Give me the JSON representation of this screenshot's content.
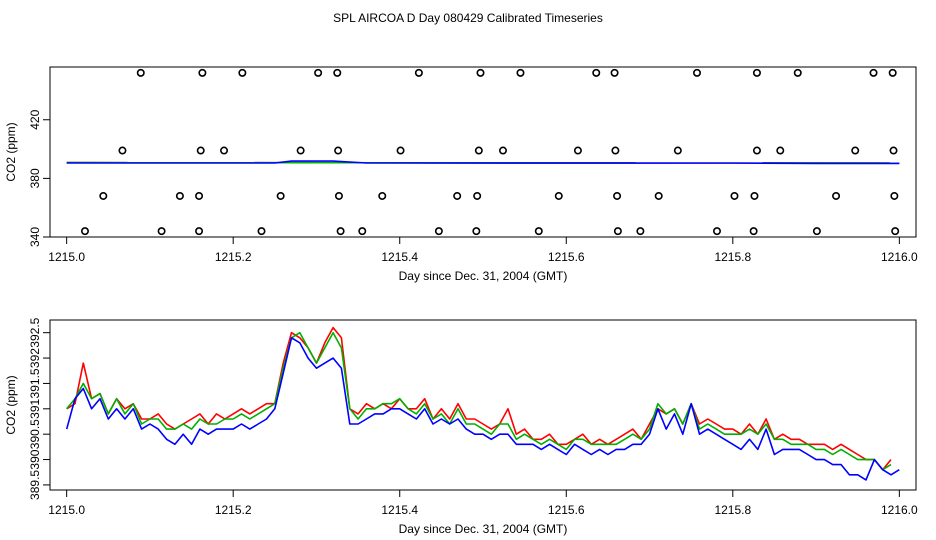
{
  "figure": {
    "title": "SPL AIRCOA D  Day 080429  Calibrated Timeseries"
  },
  "colors": {
    "red": "#ff0000",
    "green": "#00b000",
    "blue": "#0000ff",
    "points": "#000000"
  },
  "chart_data": [
    {
      "type": "scatter",
      "title": "",
      "xlabel": "Day since Dec. 31, 2004 (GMT)",
      "ylabel": "CO2 (ppm)",
      "xlim": [
        1214.98,
        1216.02
      ],
      "ylim": [
        340,
        456
      ],
      "xticks": [
        1215.0,
        1215.2,
        1215.4,
        1215.6,
        1215.8,
        1216.0
      ],
      "xtick_labels": [
        "1215.0",
        "1215.2",
        "1215.4",
        "1215.6",
        "1215.8",
        "1216.0"
      ],
      "yticks": [
        340,
        380,
        420
      ],
      "ytick_labels": [
        "340",
        "380",
        "420"
      ],
      "calibration_points": [
        {
          "x": 1215.089,
          "y": 452
        },
        {
          "x": 1215.163,
          "y": 452
        },
        {
          "x": 1215.211,
          "y": 452
        },
        {
          "x": 1215.302,
          "y": 452
        },
        {
          "x": 1215.325,
          "y": 452
        },
        {
          "x": 1215.423,
          "y": 452
        },
        {
          "x": 1215.497,
          "y": 452
        },
        {
          "x": 1215.545,
          "y": 452
        },
        {
          "x": 1215.636,
          "y": 452
        },
        {
          "x": 1215.658,
          "y": 452
        },
        {
          "x": 1215.757,
          "y": 452
        },
        {
          "x": 1215.829,
          "y": 452
        },
        {
          "x": 1215.878,
          "y": 452
        },
        {
          "x": 1215.969,
          "y": 452
        },
        {
          "x": 1215.992,
          "y": 452
        },
        {
          "x": 1215.067,
          "y": 399
        },
        {
          "x": 1215.161,
          "y": 399
        },
        {
          "x": 1215.189,
          "y": 399
        },
        {
          "x": 1215.281,
          "y": 399
        },
        {
          "x": 1215.326,
          "y": 399
        },
        {
          "x": 1215.401,
          "y": 399
        },
        {
          "x": 1215.495,
          "y": 399
        },
        {
          "x": 1215.524,
          "y": 399
        },
        {
          "x": 1215.614,
          "y": 399
        },
        {
          "x": 1215.659,
          "y": 399
        },
        {
          "x": 1215.734,
          "y": 399
        },
        {
          "x": 1215.829,
          "y": 399
        },
        {
          "x": 1215.857,
          "y": 399
        },
        {
          "x": 1215.947,
          "y": 399
        },
        {
          "x": 1215.993,
          "y": 399
        },
        {
          "x": 1215.044,
          "y": 368
        },
        {
          "x": 1215.136,
          "y": 368
        },
        {
          "x": 1215.159,
          "y": 368
        },
        {
          "x": 1215.257,
          "y": 368
        },
        {
          "x": 1215.327,
          "y": 368
        },
        {
          "x": 1215.379,
          "y": 368
        },
        {
          "x": 1215.469,
          "y": 368
        },
        {
          "x": 1215.493,
          "y": 368
        },
        {
          "x": 1215.591,
          "y": 368
        },
        {
          "x": 1215.661,
          "y": 368
        },
        {
          "x": 1215.711,
          "y": 368
        },
        {
          "x": 1215.802,
          "y": 368
        },
        {
          "x": 1215.826,
          "y": 368
        },
        {
          "x": 1215.924,
          "y": 368
        },
        {
          "x": 1215.994,
          "y": 368
        },
        {
          "x": 1215.022,
          "y": 344
        },
        {
          "x": 1215.114,
          "y": 344
        },
        {
          "x": 1215.159,
          "y": 344
        },
        {
          "x": 1215.234,
          "y": 344
        },
        {
          "x": 1215.329,
          "y": 344
        },
        {
          "x": 1215.355,
          "y": 344
        },
        {
          "x": 1215.447,
          "y": 344
        },
        {
          "x": 1215.492,
          "y": 344
        },
        {
          "x": 1215.567,
          "y": 344
        },
        {
          "x": 1215.662,
          "y": 344
        },
        {
          "x": 1215.689,
          "y": 344
        },
        {
          "x": 1215.781,
          "y": 344
        },
        {
          "x": 1215.825,
          "y": 344
        },
        {
          "x": 1215.901,
          "y": 344
        },
        {
          "x": 1215.995,
          "y": 344
        }
      ],
      "series": [
        {
          "name": "red",
          "x": [
            1215.0,
            1216.0
          ],
          "values": [
            390.8,
            390.5
          ]
        },
        {
          "name": "green",
          "x": [
            1215.0,
            1216.0
          ],
          "values": [
            390.8,
            390.5
          ]
        },
        {
          "name": "blue",
          "x": [
            1215.0,
            1215.25,
            1215.27,
            1215.32,
            1215.36,
            1215.6,
            1215.8,
            1215.9,
            1216.0
          ],
          "values": [
            390.5,
            390.5,
            391.8,
            391.8,
            390.5,
            390.4,
            390.5,
            390.2,
            390.2
          ]
        }
      ]
    },
    {
      "type": "line",
      "title": "",
      "xlabel": "Day since Dec. 31, 2004 (GMT)",
      "ylabel": "CO2 (ppm)",
      "xlim": [
        1214.98,
        1216.02
      ],
      "ylim": [
        389.4,
        392.75
      ],
      "xticks": [
        1215.0,
        1215.2,
        1215.4,
        1215.6,
        1215.8,
        1216.0
      ],
      "xtick_labels": [
        "1215.0",
        "1215.2",
        "1215.4",
        "1215.6",
        "1215.8",
        "1216.0"
      ],
      "yticks": [
        389.5,
        390.0,
        390.5,
        391.0,
        391.5,
        392.0,
        392.5
      ],
      "ytick_labels": [
        "389.5",
        "390",
        "390.5",
        "391",
        "391.5",
        "392",
        "392.5"
      ],
      "x": [
        1215.0,
        1215.01,
        1215.02,
        1215.03,
        1215.04,
        1215.05,
        1215.06,
        1215.07,
        1215.08,
        1215.09,
        1215.1,
        1215.11,
        1215.12,
        1215.13,
        1215.14,
        1215.15,
        1215.16,
        1215.17,
        1215.18,
        1215.19,
        1215.2,
        1215.21,
        1215.22,
        1215.23,
        1215.24,
        1215.25,
        1215.26,
        1215.27,
        1215.28,
        1215.29,
        1215.3,
        1215.31,
        1215.32,
        1215.33,
        1215.34,
        1215.35,
        1215.36,
        1215.37,
        1215.38,
        1215.39,
        1215.4,
        1215.41,
        1215.42,
        1215.43,
        1215.44,
        1215.45,
        1215.46,
        1215.47,
        1215.48,
        1215.49,
        1215.5,
        1215.51,
        1215.52,
        1215.53,
        1215.54,
        1215.55,
        1215.56,
        1215.57,
        1215.58,
        1215.59,
        1215.6,
        1215.61,
        1215.62,
        1215.63,
        1215.64,
        1215.65,
        1215.66,
        1215.67,
        1215.68,
        1215.69,
        1215.7,
        1215.71,
        1215.72,
        1215.73,
        1215.74,
        1215.75,
        1215.76,
        1215.77,
        1215.78,
        1215.79,
        1215.8,
        1215.81,
        1215.82,
        1215.83,
        1215.84,
        1215.85,
        1215.86,
        1215.87,
        1215.88,
        1215.89,
        1215.9,
        1215.91,
        1215.92,
        1215.93,
        1215.94,
        1215.95,
        1215.96,
        1215.97,
        1215.98,
        1215.99,
        1216.0
      ],
      "series": [
        {
          "name": "red",
          "values": [
            391.0,
            391.1,
            391.9,
            391.2,
            391.3,
            390.9,
            391.2,
            391.0,
            391.1,
            390.8,
            390.8,
            390.9,
            390.7,
            390.6,
            390.7,
            390.8,
            390.9,
            390.7,
            390.9,
            390.8,
            390.9,
            391.0,
            390.9,
            391.0,
            391.1,
            391.1,
            391.9,
            392.5,
            392.4,
            392.2,
            391.9,
            392.3,
            392.6,
            392.4,
            391.0,
            390.9,
            391.1,
            391.0,
            391.1,
            391.0,
            391.2,
            391.0,
            391.0,
            391.2,
            390.8,
            391.0,
            390.8,
            391.1,
            390.8,
            390.8,
            390.7,
            390.6,
            390.7,
            391.0,
            390.5,
            390.6,
            390.4,
            390.4,
            390.5,
            390.3,
            390.3,
            390.4,
            390.5,
            390.3,
            390.4,
            390.3,
            390.4,
            390.5,
            390.6,
            390.4,
            390.7,
            391.0,
            390.9,
            391.0,
            390.7,
            391.1,
            390.7,
            390.8,
            390.7,
            390.6,
            390.6,
            390.5,
            390.7,
            390.5,
            390.8,
            390.4,
            390.5,
            390.4,
            390.4,
            390.3,
            390.3,
            390.3,
            390.2,
            390.3,
            390.2,
            390.1,
            390.0,
            390.0,
            389.8,
            390.0,
            null
          ]
        },
        {
          "name": "green",
          "values": [
            391.0,
            391.2,
            391.5,
            391.2,
            391.3,
            390.9,
            391.2,
            390.9,
            391.1,
            390.7,
            390.8,
            390.8,
            390.6,
            390.6,
            390.7,
            390.6,
            390.8,
            390.7,
            390.7,
            390.8,
            390.8,
            390.9,
            390.8,
            390.9,
            391.0,
            391.1,
            391.8,
            392.4,
            392.5,
            392.2,
            391.9,
            392.2,
            392.5,
            392.2,
            391.0,
            390.8,
            391.0,
            391.0,
            391.1,
            391.1,
            391.2,
            391.0,
            390.9,
            391.1,
            390.8,
            390.9,
            390.7,
            391.0,
            390.7,
            390.7,
            390.6,
            390.5,
            390.7,
            390.7,
            390.4,
            390.5,
            390.4,
            390.3,
            390.4,
            390.3,
            390.2,
            390.4,
            390.4,
            390.3,
            390.3,
            390.3,
            390.3,
            390.4,
            390.5,
            390.4,
            390.6,
            391.1,
            390.9,
            391.0,
            390.7,
            391.1,
            390.6,
            390.7,
            390.6,
            390.5,
            390.5,
            390.5,
            390.6,
            390.5,
            390.7,
            390.4,
            390.4,
            390.3,
            390.3,
            390.3,
            390.2,
            390.2,
            390.1,
            390.2,
            390.1,
            390.0,
            390.0,
            390.0,
            389.8,
            389.9,
            null
          ]
        },
        {
          "name": "blue",
          "values": [
            390.6,
            391.2,
            391.4,
            391.0,
            391.2,
            390.8,
            391.0,
            390.8,
            391.0,
            390.6,
            390.7,
            390.6,
            390.4,
            390.3,
            390.5,
            390.3,
            390.6,
            390.5,
            390.6,
            390.6,
            390.6,
            390.7,
            390.6,
            390.7,
            390.8,
            391.0,
            391.7,
            392.4,
            392.3,
            392.0,
            391.8,
            391.9,
            392.0,
            391.8,
            390.7,
            390.7,
            390.8,
            390.9,
            390.9,
            391.0,
            391.0,
            390.9,
            390.8,
            391.0,
            390.7,
            390.8,
            390.7,
            390.8,
            390.6,
            390.5,
            390.5,
            390.4,
            390.5,
            390.5,
            390.3,
            390.3,
            390.3,
            390.2,
            390.3,
            390.2,
            390.1,
            390.3,
            390.2,
            390.1,
            390.2,
            390.1,
            390.2,
            390.2,
            390.3,
            390.3,
            390.5,
            391.0,
            390.6,
            390.9,
            390.5,
            391.1,
            390.5,
            390.6,
            390.5,
            390.4,
            390.3,
            390.2,
            390.4,
            390.2,
            390.6,
            390.1,
            390.2,
            390.2,
            390.2,
            390.1,
            390.0,
            390.0,
            389.9,
            389.9,
            389.7,
            389.7,
            389.6,
            390.0,
            389.8,
            389.7,
            389.8
          ]
        }
      ]
    }
  ]
}
